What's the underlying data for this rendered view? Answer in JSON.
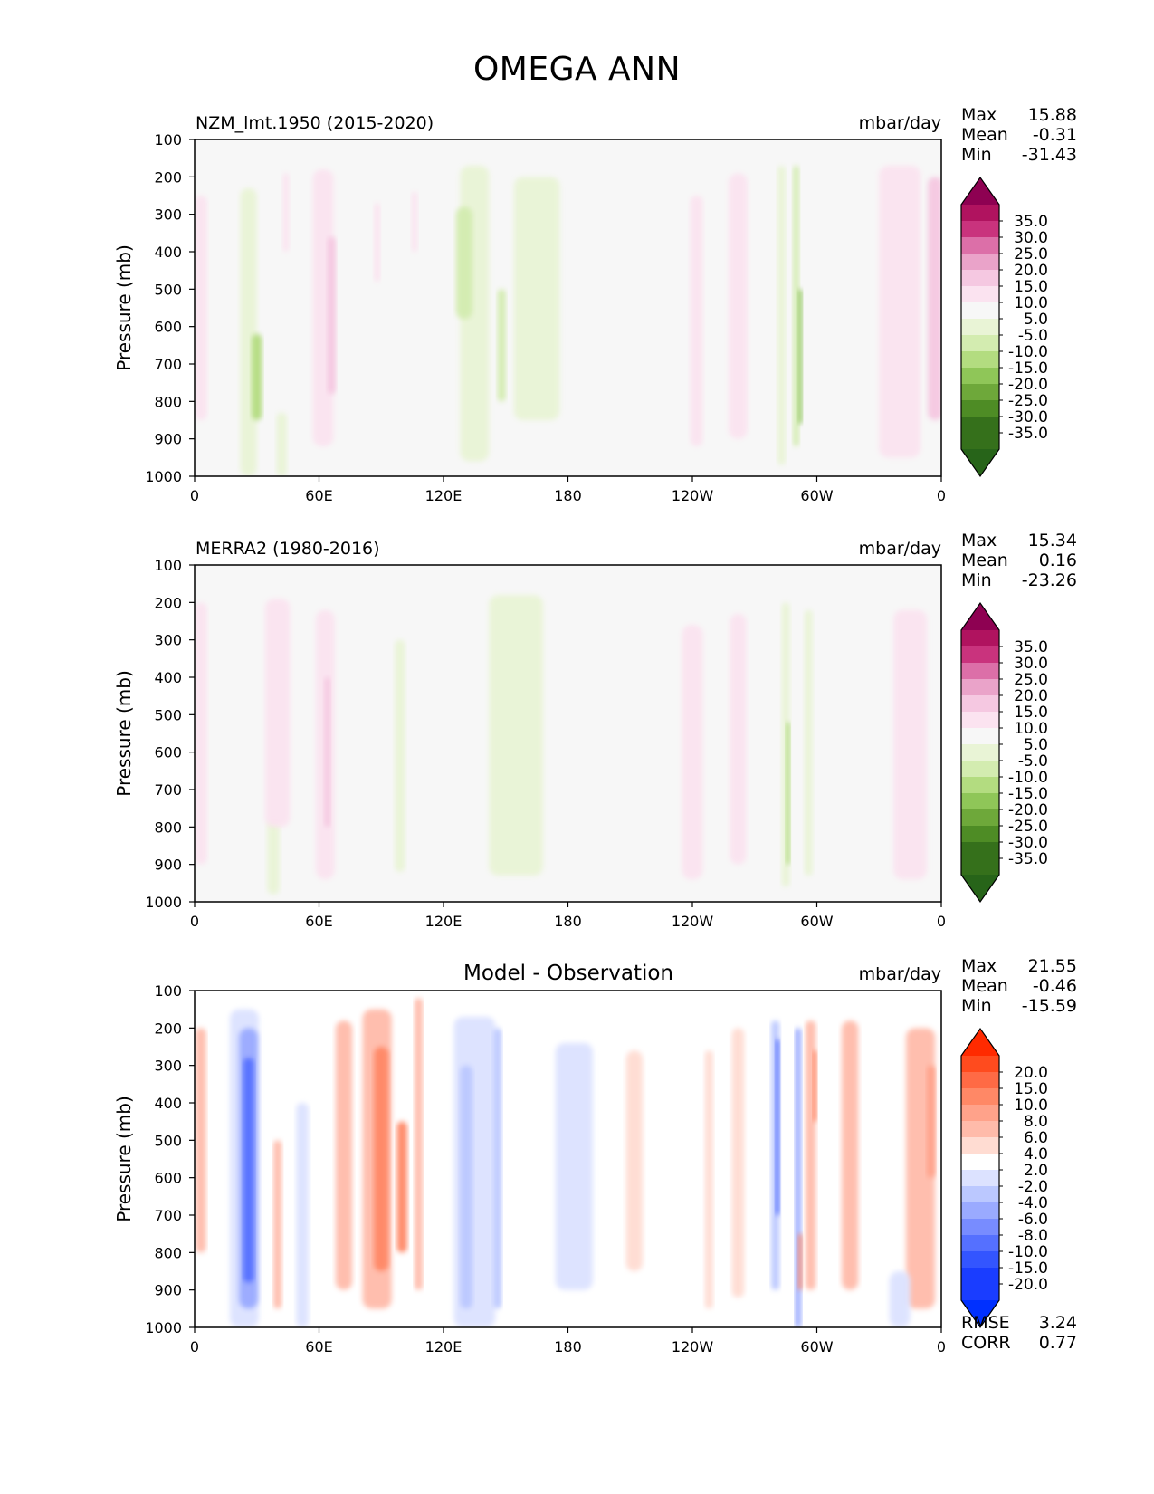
{
  "title": "OMEGA ANN",
  "chart_data": [
    {
      "type": "heatmap",
      "title": "NZM_lmt.1950 (2015-2020)",
      "units": "mbar/day",
      "ylabel": "Pressure (mb)",
      "xlabel": "",
      "x_ticks": [
        "0",
        "60E",
        "120E",
        "180",
        "120W",
        "60W",
        "0"
      ],
      "y_ticks": [
        "100",
        "200",
        "300",
        "400",
        "500",
        "600",
        "700",
        "800",
        "900",
        "1000"
      ],
      "xlim": [
        0,
        360
      ],
      "ylim": [
        1000,
        100
      ],
      "stats": {
        "max_label": "Max",
        "max": "15.88",
        "mean_label": "Mean",
        "mean": "-0.31",
        "min_label": "Min",
        "min": "-31.43"
      },
      "colorbar": {
        "ticks": [
          "35.0",
          "30.0",
          "25.0",
          "20.0",
          "15.0",
          "10.0",
          "5.0",
          "-5.0",
          "-10.0",
          "-15.0",
          "-20.0",
          "-25.0",
          "-30.0",
          "-35.0"
        ],
        "colors": [
          "#8e0152",
          "#b0135f",
          "#c9337d",
          "#dc6fa8",
          "#eaa3c9",
          "#f5c8e1",
          "#fbe3f0",
          "#f7f7f7",
          "#e9f4d6",
          "#d3ecb0",
          "#b3dc80",
          "#8fc658",
          "#6ea83a",
          "#4e8c25",
          "#35701b",
          "#276419"
        ]
      },
      "features": [
        {
          "lon": 3,
          "w": 6,
          "p0": 250,
          "p1": 850,
          "v": 8
        },
        {
          "lon": 26,
          "w": 8,
          "p0": 230,
          "p1": 1000,
          "v": -6
        },
        {
          "lon": 30,
          "w": 5,
          "p0": 620,
          "p1": 850,
          "v": -16
        },
        {
          "lon": 42,
          "w": 5,
          "p0": 830,
          "p1": 1000,
          "v": -6
        },
        {
          "lon": 44,
          "w": 3,
          "p0": 190,
          "p1": 400,
          "v": 7
        },
        {
          "lon": 62,
          "w": 10,
          "p0": 180,
          "p1": 920,
          "v": 7
        },
        {
          "lon": 66,
          "w": 4,
          "p0": 360,
          "p1": 780,
          "v": 12
        },
        {
          "lon": 88,
          "w": 3,
          "p0": 270,
          "p1": 480,
          "v": 7
        },
        {
          "lon": 106,
          "w": 3,
          "p0": 240,
          "p1": 400,
          "v": 7
        },
        {
          "lon": 135,
          "w": 14,
          "p0": 170,
          "p1": 960,
          "v": -6
        },
        {
          "lon": 130,
          "w": 8,
          "p0": 280,
          "p1": 580,
          "v": -12
        },
        {
          "lon": 148,
          "w": 4,
          "p0": 500,
          "p1": 800,
          "v": -12
        },
        {
          "lon": 165,
          "w": 22,
          "p0": 200,
          "p1": 850,
          "v": -6
        },
        {
          "lon": 242,
          "w": 6,
          "p0": 250,
          "p1": 920,
          "v": 7
        },
        {
          "lon": 262,
          "w": 9,
          "p0": 190,
          "p1": 900,
          "v": 7
        },
        {
          "lon": 283,
          "w": 4,
          "p0": 170,
          "p1": 970,
          "v": -10
        },
        {
          "lon": 290,
          "w": 3,
          "p0": 170,
          "p1": 920,
          "v": -12
        },
        {
          "lon": 292,
          "w": 2,
          "p0": 500,
          "p1": 860,
          "v": -22
        },
        {
          "lon": 340,
          "w": 20,
          "p0": 170,
          "p1": 950,
          "v": 7
        },
        {
          "lon": 357,
          "w": 7,
          "p0": 200,
          "p1": 850,
          "v": 12
        }
      ]
    },
    {
      "type": "heatmap",
      "title": "MERRA2 (1980-2016)",
      "units": "mbar/day",
      "ylabel": "Pressure (mb)",
      "xlabel": "",
      "x_ticks": [
        "0",
        "60E",
        "120E",
        "180",
        "120W",
        "60W",
        "0"
      ],
      "y_ticks": [
        "100",
        "200",
        "300",
        "400",
        "500",
        "600",
        "700",
        "800",
        "900",
        "1000"
      ],
      "xlim": [
        0,
        360
      ],
      "ylim": [
        1000,
        100
      ],
      "stats": {
        "max_label": "Max",
        "max": "15.34",
        "mean_label": "Mean",
        "mean": "0.16",
        "min_label": "Min",
        "min": "-23.26"
      },
      "colorbar": {
        "ticks": [
          "35.0",
          "30.0",
          "25.0",
          "20.0",
          "15.0",
          "10.0",
          "5.0",
          "-5.0",
          "-10.0",
          "-15.0",
          "-20.0",
          "-25.0",
          "-30.0",
          "-35.0"
        ],
        "colors": [
          "#8e0152",
          "#b0135f",
          "#c9337d",
          "#dc6fa8",
          "#eaa3c9",
          "#f5c8e1",
          "#fbe3f0",
          "#f7f7f7",
          "#e9f4d6",
          "#d3ecb0",
          "#b3dc80",
          "#8fc658",
          "#6ea83a",
          "#4e8c25",
          "#35701b",
          "#276419"
        ]
      },
      "features": [
        {
          "lon": 3,
          "w": 6,
          "p0": 200,
          "p1": 900,
          "v": 7
        },
        {
          "lon": 38,
          "w": 6,
          "p0": 780,
          "p1": 980,
          "v": -7
        },
        {
          "lon": 40,
          "w": 12,
          "p0": 190,
          "p1": 800,
          "v": 7
        },
        {
          "lon": 63,
          "w": 9,
          "p0": 220,
          "p1": 940,
          "v": 7
        },
        {
          "lon": 64,
          "w": 3,
          "p0": 400,
          "p1": 800,
          "v": 12
        },
        {
          "lon": 99,
          "w": 5,
          "p0": 300,
          "p1": 920,
          "v": -8
        },
        {
          "lon": 155,
          "w": 26,
          "p0": 180,
          "p1": 930,
          "v": -6
        },
        {
          "lon": 240,
          "w": 10,
          "p0": 260,
          "p1": 940,
          "v": 7
        },
        {
          "lon": 262,
          "w": 8,
          "p0": 230,
          "p1": 900,
          "v": 7
        },
        {
          "lon": 285,
          "w": 4,
          "p0": 200,
          "p1": 960,
          "v": -9
        },
        {
          "lon": 286,
          "w": 2,
          "p0": 520,
          "p1": 900,
          "v": -20
        },
        {
          "lon": 296,
          "w": 4,
          "p0": 220,
          "p1": 930,
          "v": -8
        },
        {
          "lon": 345,
          "w": 16,
          "p0": 220,
          "p1": 940,
          "v": 7
        }
      ]
    },
    {
      "type": "heatmap",
      "title": "Model - Observation",
      "units": "mbar/day",
      "ylabel": "Pressure (mb)",
      "xlabel": "",
      "x_ticks": [
        "0",
        "60E",
        "120E",
        "180",
        "120W",
        "60W",
        "0"
      ],
      "y_ticks": [
        "100",
        "200",
        "300",
        "400",
        "500",
        "600",
        "700",
        "800",
        "900",
        "1000"
      ],
      "xlim": [
        0,
        360
      ],
      "ylim": [
        1000,
        100
      ],
      "stats": {
        "max_label": "Max",
        "max": "21.55",
        "mean_label": "Mean",
        "mean": "-0.46",
        "min_label": "Min",
        "min": "-15.59"
      },
      "rmse_label": "RMSE",
      "rmse": "3.24",
      "corr_label": "CORR",
      "corr": "0.77",
      "colorbar": {
        "ticks": [
          "20.0",
          "15.0",
          "10.0",
          "8.0",
          "6.0",
          "4.0",
          "2.0",
          "-2.0",
          "-4.0",
          "-6.0",
          "-8.0",
          "-10.0",
          "-15.0",
          "-20.0"
        ],
        "colors": [
          "#ff2a00",
          "#ff4b1e",
          "#ff6a45",
          "#ff8866",
          "#ffa28a",
          "#ffbbaa",
          "#ffdcd2",
          "#ffffff",
          "#dce2ff",
          "#bbc8ff",
          "#9aaaff",
          "#788cff",
          "#5570ff",
          "#3355ff",
          "#1a3dff",
          "#0030ff"
        ]
      },
      "features": [
        {
          "lon": 3,
          "w": 5,
          "p0": 200,
          "p1": 800,
          "v": 5
        },
        {
          "lon": 24,
          "w": 14,
          "p0": 150,
          "p1": 1000,
          "v": -3
        },
        {
          "lon": 26,
          "w": 9,
          "p0": 200,
          "p1": 950,
          "v": -7
        },
        {
          "lon": 26,
          "w": 5,
          "p0": 280,
          "p1": 880,
          "v": -12
        },
        {
          "lon": 40,
          "w": 4,
          "p0": 500,
          "p1": 950,
          "v": 5
        },
        {
          "lon": 52,
          "w": 6,
          "p0": 400,
          "p1": 1000,
          "v": -4
        },
        {
          "lon": 72,
          "w": 8,
          "p0": 180,
          "p1": 900,
          "v": 5
        },
        {
          "lon": 88,
          "w": 14,
          "p0": 150,
          "p1": 950,
          "v": 5
        },
        {
          "lon": 90,
          "w": 7,
          "p0": 250,
          "p1": 850,
          "v": 9
        },
        {
          "lon": 100,
          "w": 5,
          "p0": 450,
          "p1": 800,
          "v": 9
        },
        {
          "lon": 108,
          "w": 4,
          "p0": 120,
          "p1": 900,
          "v": 5
        },
        {
          "lon": 135,
          "w": 20,
          "p0": 170,
          "p1": 1000,
          "v": -3
        },
        {
          "lon": 131,
          "w": 6,
          "p0": 300,
          "p1": 950,
          "v": -6
        },
        {
          "lon": 146,
          "w": 4,
          "p0": 200,
          "p1": 950,
          "v": -6
        },
        {
          "lon": 183,
          "w": 18,
          "p0": 240,
          "p1": 900,
          "v": -3
        },
        {
          "lon": 212,
          "w": 8,
          "p0": 260,
          "p1": 850,
          "v": 3
        },
        {
          "lon": 248,
          "w": 4,
          "p0": 260,
          "p1": 950,
          "v": 3
        },
        {
          "lon": 262,
          "w": 6,
          "p0": 200,
          "p1": 920,
          "v": 3
        },
        {
          "lon": 280,
          "w": 4,
          "p0": 180,
          "p1": 900,
          "v": -5
        },
        {
          "lon": 281,
          "w": 2,
          "p0": 230,
          "p1": 700,
          "v": -12
        },
        {
          "lon": 291,
          "w": 3,
          "p0": 200,
          "p1": 1000,
          "v": -7
        },
        {
          "lon": 292,
          "w": 2,
          "p0": 750,
          "p1": 900,
          "v": 9
        },
        {
          "lon": 297,
          "w": 5,
          "p0": 180,
          "p1": 900,
          "v": 5
        },
        {
          "lon": 299,
          "w": 2,
          "p0": 260,
          "p1": 450,
          "v": 9
        },
        {
          "lon": 316,
          "w": 8,
          "p0": 180,
          "p1": 900,
          "v": 4
        },
        {
          "lon": 350,
          "w": 14,
          "p0": 200,
          "p1": 950,
          "v": 4
        },
        {
          "lon": 355,
          "w": 4,
          "p0": 300,
          "p1": 600,
          "v": 7
        },
        {
          "lon": 340,
          "w": 10,
          "p0": 850,
          "p1": 1000,
          "v": -3
        }
      ]
    }
  ]
}
